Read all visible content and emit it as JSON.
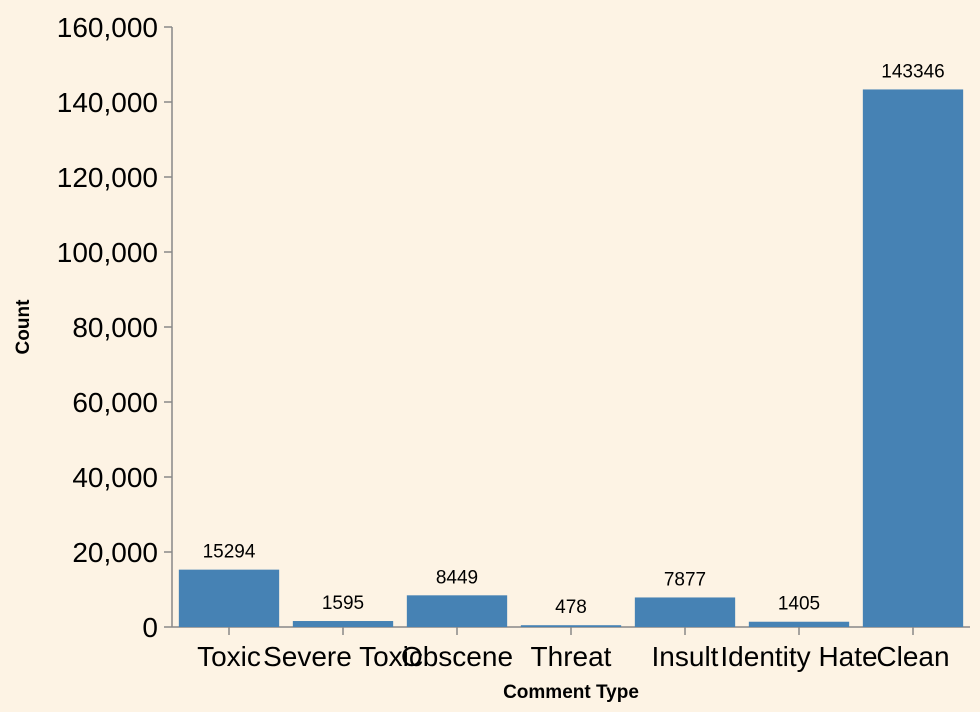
{
  "chart_data": {
    "type": "bar",
    "categories": [
      "Toxic",
      "Severe Toxic",
      "Obscene",
      "Threat",
      "Insult",
      "Identity Hate",
      "Clean"
    ],
    "values": [
      15294,
      1595,
      8449,
      478,
      7877,
      1405,
      143346
    ],
    "data_labels": [
      "15294",
      "1595",
      "8449",
      "478",
      "7877",
      "1405",
      "143346"
    ],
    "xlabel": "Comment Type",
    "ylabel": "Count",
    "ylim": [
      0,
      160000
    ],
    "yticks": [
      0,
      20000,
      40000,
      60000,
      80000,
      100000,
      120000,
      140000,
      160000
    ],
    "ytick_labels": [
      "0",
      "20,000",
      "40,000",
      "60,000",
      "80,000",
      "100,000",
      "120,000",
      "140,000",
      "160,000"
    ],
    "grid": false,
    "colors": {
      "bar": "#4682b4",
      "background": "#fdf3e4",
      "axis": "#888888"
    }
  }
}
